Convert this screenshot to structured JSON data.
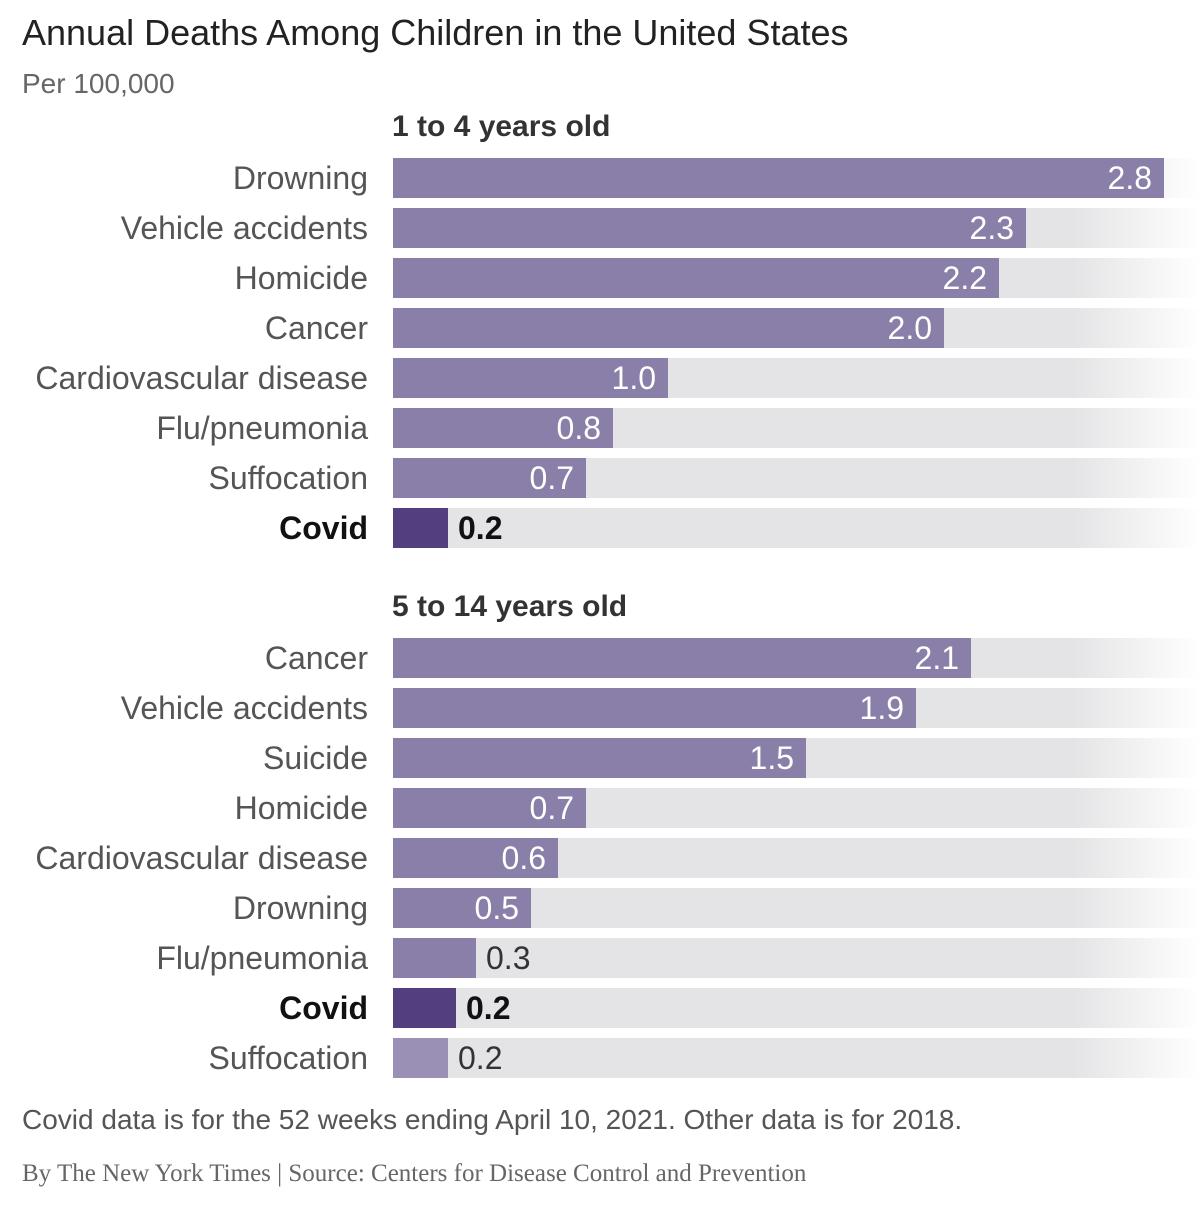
{
  "header": {
    "title": "Annual Deaths Among Children in the United States",
    "subtitle": "Per 100,000"
  },
  "footer": {
    "note": "Covid data is for the 52 weeks ending April 10, 2021. Other data is for 2018.",
    "credit": "By The New York Times | Source: Centers for Disease Control and Prevention"
  },
  "colors": {
    "bar": "#8a7fa8",
    "highlight_bar": "#533f7f",
    "track": "#e4e4e6"
  },
  "chart_data": [
    {
      "type": "bar",
      "orientation": "horizontal",
      "title": "1 to 4 years old",
      "xlim": [
        0,
        2.8
      ],
      "categories": [
        "Drowning",
        "Vehicle accidents",
        "Homicide",
        "Cancer",
        "Cardiovascular disease",
        "Flu/pneumonia",
        "Suffocation",
        "Covid"
      ],
      "values": [
        2.8,
        2.3,
        2.2,
        2.0,
        1.0,
        0.8,
        0.7,
        0.2
      ],
      "labels": [
        "2.8",
        "2.3",
        "2.2",
        "2.0",
        "1.0",
        "0.8",
        "0.7",
        "0.2"
      ],
      "highlight": "Covid"
    },
    {
      "type": "bar",
      "orientation": "horizontal",
      "title": "5 to 14 years old",
      "xlim": [
        0,
        2.8
      ],
      "categories": [
        "Cancer",
        "Vehicle accidents",
        "Suicide",
        "Homicide",
        "Cardiovascular disease",
        "Drowning",
        "Flu/pneumonia",
        "Covid",
        "Suffocation"
      ],
      "values": [
        2.1,
        1.9,
        1.5,
        0.7,
        0.6,
        0.5,
        0.3,
        0.23,
        0.2
      ],
      "labels": [
        "2.1",
        "1.9",
        "1.5",
        "0.7",
        "0.6",
        "0.5",
        "0.3",
        "0.2",
        "0.2"
      ],
      "highlight": "Covid"
    }
  ]
}
